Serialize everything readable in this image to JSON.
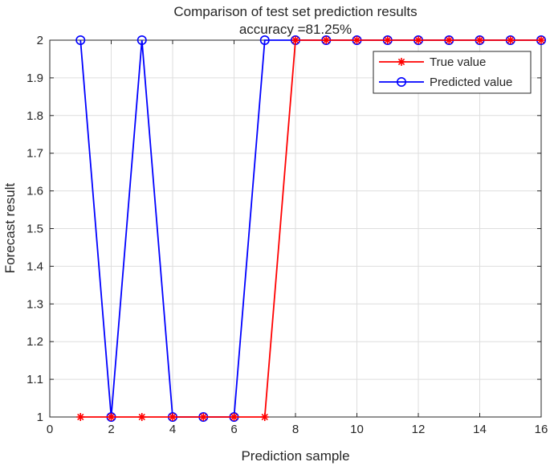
{
  "chart_data": {
    "type": "line",
    "title": "Comparison of test set prediction results",
    "subtitle": "accuracy =81.25%",
    "xlabel": "Prediction sample",
    "ylabel": "Forecast result",
    "xlim": [
      0,
      16
    ],
    "ylim": [
      1,
      2
    ],
    "xticks": [
      "0",
      "2",
      "4",
      "6",
      "8",
      "10",
      "12",
      "14",
      "16"
    ],
    "yticks": [
      "1",
      "1.1",
      "1.2",
      "1.3",
      "1.4",
      "1.5",
      "1.6",
      "1.7",
      "1.8",
      "1.9",
      "2"
    ],
    "grid": true,
    "legend_position": "top-right",
    "x": [
      1,
      2,
      3,
      4,
      5,
      6,
      7,
      8,
      9,
      10,
      11,
      12,
      13,
      14,
      15,
      16
    ],
    "series": [
      {
        "name": "True value",
        "color": "#ff0000",
        "marker": "asterisk",
        "values": [
          1,
          1,
          1,
          1,
          1,
          1,
          1,
          2,
          2,
          2,
          2,
          2,
          2,
          2,
          2,
          2
        ]
      },
      {
        "name": "Predicted value",
        "color": "#0000ff",
        "marker": "circle",
        "values": [
          2,
          1,
          2,
          1,
          1,
          1,
          2,
          2,
          2,
          2,
          2,
          2,
          2,
          2,
          2,
          2
        ]
      }
    ]
  }
}
